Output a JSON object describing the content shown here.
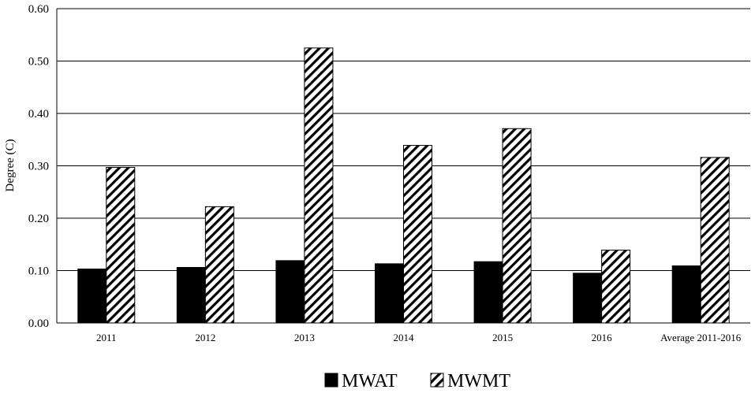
{
  "chart_data": {
    "type": "bar",
    "title": "",
    "xlabel": "",
    "ylabel": "Degree (C)",
    "ylim": [
      0,
      0.6
    ],
    "yticks": [
      "0.00",
      "0.10",
      "0.20",
      "0.30",
      "0.40",
      "0.50",
      "0.60"
    ],
    "categories": [
      "2011",
      "2012",
      "2013",
      "2014",
      "2015",
      "2016",
      "Average 2011-2016"
    ],
    "series": [
      {
        "name": "MWAT",
        "fill": "solid-black",
        "values": [
          0.103,
          0.106,
          0.119,
          0.113,
          0.117,
          0.095,
          0.109
        ]
      },
      {
        "name": "MWMT",
        "fill": "diagonal-hatch",
        "values": [
          0.297,
          0.222,
          0.525,
          0.339,
          0.371,
          0.139,
          0.316
        ]
      }
    ],
    "grid": true,
    "legend_position": "bottom-center",
    "colors": {
      "solid": "#000000",
      "hatch": "#000000",
      "background": "#ffffff",
      "grid": "#000000"
    }
  }
}
